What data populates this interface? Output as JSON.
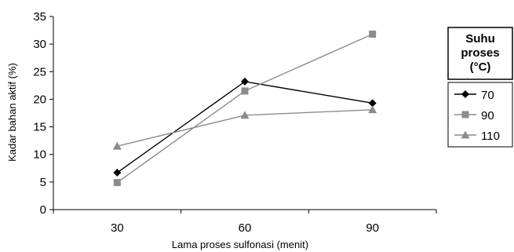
{
  "chart_data": {
    "type": "line",
    "xlabel": "Lama proses sulfonasi (menit)",
    "ylabel": "Kadar bahan aktif (%)",
    "categories": [
      "30",
      "60",
      "90"
    ],
    "ylim": [
      0,
      35
    ],
    "yticks": [
      "0",
      "5",
      "10",
      "15",
      "20",
      "25",
      "30",
      "35"
    ],
    "grid": false,
    "legend_placement": "right",
    "legend_title_lines": [
      "Suhu",
      "proses",
      "(°C)"
    ],
    "series": [
      {
        "name": "70",
        "values": [
          6.7,
          23.2,
          19.3
        ],
        "color": "#000000",
        "marker": "diamond"
      },
      {
        "name": "90",
        "values": [
          4.9,
          21.5,
          31.8
        ],
        "color": "#8c8c8c",
        "marker": "square"
      },
      {
        "name": "110",
        "values": [
          11.5,
          17.1,
          18.1
        ],
        "color": "#8c8c8c",
        "marker": "triangle"
      }
    ]
  }
}
